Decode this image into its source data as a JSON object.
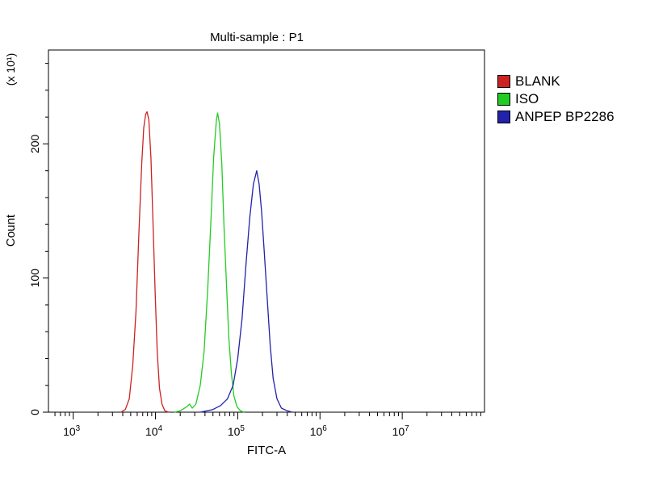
{
  "chart_data": {
    "type": "line",
    "title": "Multi-sample : P1",
    "xlabel": "FITC-A",
    "ylabel": "Count",
    "y_multiplier_label": "(x 10¹)",
    "x_scale": "log",
    "xlim": [
      500,
      100000000
    ],
    "ylim": [
      0,
      270
    ],
    "y_ticks": [
      {
        "value": 0,
        "label": "0"
      },
      {
        "value": 100,
        "label": "100"
      },
      {
        "value": 200,
        "label": "200"
      }
    ],
    "x_ticks": [
      {
        "value": 1000,
        "base": "10",
        "exp": "3"
      },
      {
        "value": 10000,
        "base": "10",
        "exp": "4"
      },
      {
        "value": 100000,
        "base": "10",
        "exp": "5"
      },
      {
        "value": 1000000,
        "base": "10",
        "exp": "6"
      },
      {
        "value": 10000000,
        "base": "10",
        "exp": "7"
      }
    ],
    "grid": false,
    "legend_position": "right",
    "series": [
      {
        "name": "BLANK",
        "color": "#cc2222",
        "peak_x": 7800,
        "peak_y": 224,
        "points": [
          [
            3800,
            0
          ],
          [
            4300,
            2
          ],
          [
            4800,
            10
          ],
          [
            5300,
            35
          ],
          [
            5800,
            75
          ],
          [
            6300,
            135
          ],
          [
            6800,
            185
          ],
          [
            7200,
            212
          ],
          [
            7600,
            222
          ],
          [
            7900,
            224
          ],
          [
            8300,
            218
          ],
          [
            8800,
            190
          ],
          [
            9300,
            145
          ],
          [
            9900,
            90
          ],
          [
            10500,
            45
          ],
          [
            11200,
            18
          ],
          [
            12000,
            6
          ],
          [
            13000,
            1
          ],
          [
            14500,
            0
          ]
        ]
      },
      {
        "name": "ISO",
        "color": "#22cc22",
        "peak_x": 57000,
        "peak_y": 223,
        "points": [
          [
            17000,
            0
          ],
          [
            20000,
            1
          ],
          [
            24000,
            4
          ],
          [
            26000,
            6
          ],
          [
            28000,
            3
          ],
          [
            31000,
            6
          ],
          [
            35000,
            20
          ],
          [
            39000,
            45
          ],
          [
            43000,
            90
          ],
          [
            47000,
            140
          ],
          [
            51000,
            190
          ],
          [
            55000,
            218
          ],
          [
            57000,
            223
          ],
          [
            60000,
            215
          ],
          [
            64000,
            185
          ],
          [
            68000,
            140
          ],
          [
            73000,
            95
          ],
          [
            78000,
            55
          ],
          [
            84000,
            28
          ],
          [
            90000,
            12
          ],
          [
            98000,
            4
          ],
          [
            108000,
            1
          ],
          [
            120000,
            0
          ]
        ]
      },
      {
        "name": "ANPEP BP2286",
        "color": "#2222aa",
        "peak_x": 170000,
        "peak_y": 180,
        "points": [
          [
            35000,
            0
          ],
          [
            50000,
            2
          ],
          [
            62000,
            5
          ],
          [
            75000,
            10
          ],
          [
            88000,
            20
          ],
          [
            100000,
            40
          ],
          [
            113000,
            70
          ],
          [
            126000,
            110
          ],
          [
            140000,
            145
          ],
          [
            155000,
            170
          ],
          [
            170000,
            180
          ],
          [
            182000,
            170
          ],
          [
            195000,
            150
          ],
          [
            210000,
            120
          ],
          [
            228000,
            85
          ],
          [
            248000,
            50
          ],
          [
            270000,
            25
          ],
          [
            300000,
            10
          ],
          [
            340000,
            3
          ],
          [
            400000,
            1
          ],
          [
            460000,
            0
          ]
        ]
      }
    ]
  }
}
